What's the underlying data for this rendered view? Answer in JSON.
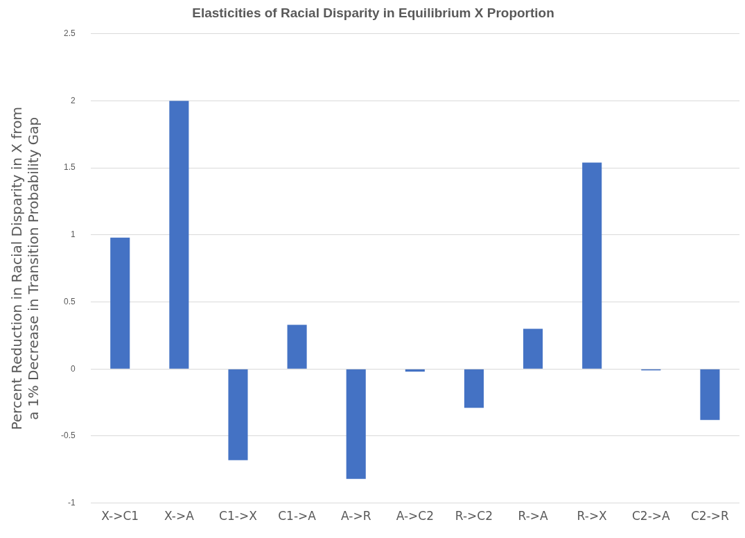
{
  "chart_data": {
    "type": "bar",
    "title": "Elasticities of Racial Disparity in Equilibrium X Proportion",
    "ylabel": "Percent Reduction in Racial Disparity in X from a 1% Decrease in Transition Probability Gap",
    "categories": [
      "X->C1",
      "X->A",
      "C1->X",
      "C1->A",
      "A->R",
      "A->C2",
      "R->C2",
      "R->A",
      "R->X",
      "C2->A",
      "C2->R"
    ],
    "values": [
      0.98,
      2.0,
      -0.68,
      0.33,
      -0.82,
      -0.02,
      -0.29,
      0.3,
      1.54,
      -0.01,
      -0.38
    ],
    "color": "#4472c4",
    "ylim": [
      -1,
      2.5
    ],
    "yticks": [
      -1,
      -0.5,
      0,
      0.5,
      1,
      1.5,
      2,
      2.5
    ],
    "grid": "y",
    "legend": false
  }
}
